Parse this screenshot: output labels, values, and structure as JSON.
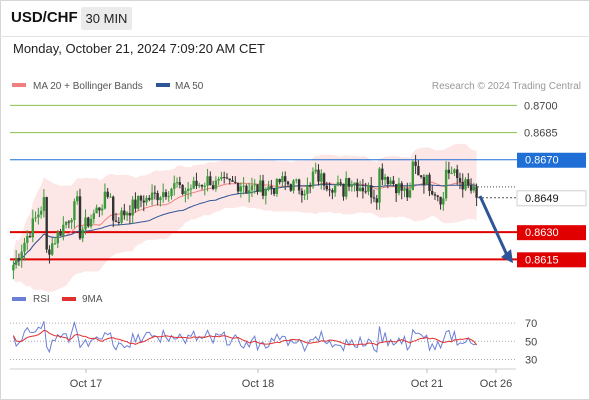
{
  "header": {
    "symbol": "USD/CHF",
    "timeframe": "30 MIN",
    "timestamp": "Monday, October 21, 2024 7:09:20 AM CET"
  },
  "credit": "Research © 2024 Trading Central",
  "colors": {
    "ma20": "#f08080",
    "ma50": "#2f5597",
    "bollinger_fill": "#fde3e3",
    "candle_up": "#3a9a3a",
    "candle_down": "#333333",
    "target_line": "#8cc04a",
    "pivot_line": "#1f6fd6",
    "support_line": "#e00000",
    "rsi": "#6b7fd6",
    "rsi_ma": "#e03030",
    "arrow": "#2f5597"
  },
  "chart_data": [
    {
      "type": "candlestick",
      "title": "USD/CHF",
      "legend": [
        {
          "name": "MA 20 + Bollinger Bands",
          "color": "#f08080"
        },
        {
          "name": "MA 50",
          "color": "#2f5597"
        }
      ],
      "legend_position": "top-left",
      "x_ticks": [
        "Oct 17",
        "Oct 18",
        "Oct 21",
        "Oct 26"
      ],
      "ylim": [
        0.8608,
        0.8703
      ],
      "grid": false,
      "series_start": [
        0.8612,
        0.8619,
        0.863,
        0.8636,
        0.8648,
        0.8652,
        0.8656,
        0.8654,
        0.8658,
        0.8662,
        0.866,
        0.8664,
        0.8667,
        0.8665
      ],
      "series_end": [
        0.865,
        0.8648,
        0.8654,
        0.865,
        0.8657,
        0.866,
        0.8657,
        0.8655,
        0.8653,
        0.8652,
        0.865,
        0.8648,
        0.8646,
        0.8649
      ],
      "current_price": 0.8649,
      "levels": [
        {
          "label": "0.8700",
          "value": 0.87,
          "kind": "target"
        },
        {
          "label": "0.8685",
          "value": 0.8685,
          "kind": "target"
        },
        {
          "label": "0.8670",
          "value": 0.867,
          "kind": "pivot"
        },
        {
          "label": "0.8630",
          "value": 0.863,
          "kind": "support"
        },
        {
          "label": "0.8615",
          "value": 0.8615,
          "kind": "support"
        }
      ],
      "forecast_arrow": {
        "from": 0.865,
        "to": 0.8614,
        "direction": "down"
      }
    },
    {
      "type": "line",
      "title": "RSI",
      "legend": [
        {
          "name": "RSI",
          "color": "#6b7fd6"
        },
        {
          "name": "9MA",
          "color": "#e03030"
        }
      ],
      "ylim": [
        25,
        80
      ],
      "y_ticks": [
        70,
        50,
        30
      ],
      "rsi_last": 47,
      "ma_last": 46
    }
  ]
}
